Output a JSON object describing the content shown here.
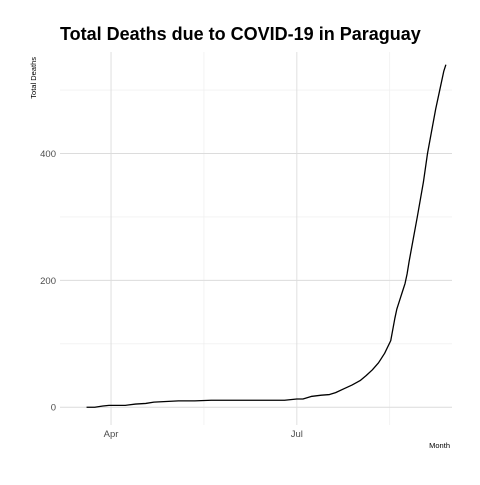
{
  "chart_data": {
    "type": "line",
    "title": "Total Deaths due to COVID-19 in Paraguay",
    "xlabel": "Month",
    "ylabel": "Total Deaths",
    "x_ticks": [
      "Apr",
      "Jul"
    ],
    "x_tick_dates": [
      "2020-04-01",
      "2020-07-01"
    ],
    "xlim": [
      "2020-03-07",
      "2020-09-15"
    ],
    "y_ticks": [
      0,
      200,
      400
    ],
    "ylim": [
      -28,
      560
    ],
    "grid": true,
    "legend": "none",
    "line_color": "#000000",
    "series": [
      {
        "x": [
          "2020-03-20",
          "2020-03-24",
          "2020-03-26",
          "2020-03-28",
          "2020-03-31",
          "2020-04-08",
          "2020-04-13",
          "2020-04-18",
          "2020-04-22",
          "2020-04-28",
          "2020-05-04",
          "2020-05-12",
          "2020-05-20",
          "2020-05-28",
          "2020-06-05",
          "2020-06-15",
          "2020-06-25",
          "2020-07-01",
          "2020-07-04",
          "2020-07-08",
          "2020-07-13",
          "2020-07-17",
          "2020-07-20",
          "2020-07-24",
          "2020-07-28",
          "2020-08-01",
          "2020-08-04",
          "2020-08-07",
          "2020-08-10",
          "2020-08-13",
          "2020-08-16",
          "2020-08-18",
          "2020-08-19",
          "2020-08-20",
          "2020-08-21",
          "2020-08-22",
          "2020-08-23",
          "2020-08-24",
          "2020-08-25",
          "2020-08-27",
          "2020-08-29",
          "2020-09-01",
          "2020-09-03",
          "2020-09-05",
          "2020-09-07",
          "2020-09-09",
          "2020-09-11",
          "2020-09-12"
        ],
        "y": [
          0,
          0,
          1,
          2,
          3,
          3,
          5,
          6,
          8,
          9,
          10,
          10,
          11,
          11,
          11,
          11,
          11,
          13,
          13,
          17,
          19,
          20,
          23,
          29,
          35,
          42,
          50,
          59,
          70,
          85,
          105,
          140,
          155,
          165,
          175,
          185,
          195,
          210,
          230,
          265,
          300,
          355,
          400,
          435,
          470,
          500,
          530,
          540
        ]
      }
    ]
  }
}
